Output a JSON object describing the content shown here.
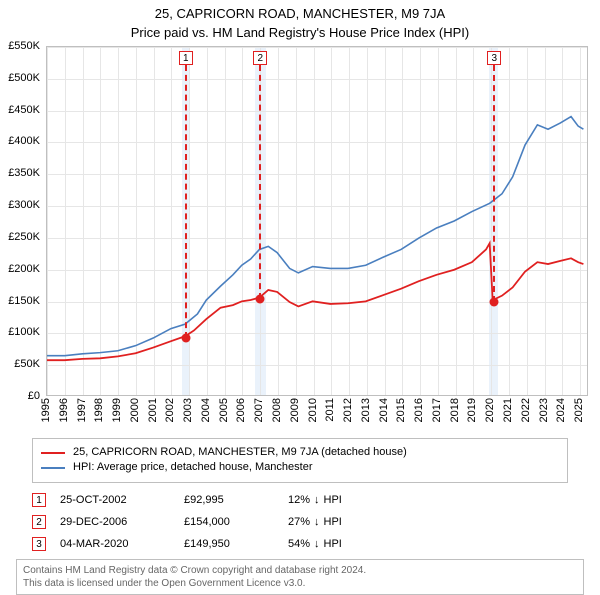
{
  "title": "25, CAPRICORN ROAD, MANCHESTER, M9 7JA",
  "subtitle": "Price paid vs. HM Land Registry's House Price Index (HPI)",
  "chart": {
    "type": "line",
    "background_color": "#ffffff",
    "grid_color": "#e6e6e6",
    "border_color": "#bfbfbf",
    "shade_color": "#eaf2fb",
    "title_fontsize": 13,
    "label_fontsize": 11,
    "x": {
      "min": 1995,
      "max": 2025.5,
      "ticks": [
        1995,
        1996,
        1997,
        1998,
        1999,
        2000,
        2001,
        2002,
        2003,
        2004,
        2005,
        2006,
        2007,
        2008,
        2009,
        2010,
        2011,
        2012,
        2013,
        2014,
        2015,
        2016,
        2017,
        2018,
        2019,
        2020,
        2021,
        2022,
        2023,
        2024,
        2025
      ]
    },
    "y": {
      "min": 0,
      "max": 550000,
      "ticks": [
        0,
        50000,
        100000,
        150000,
        200000,
        250000,
        300000,
        350000,
        400000,
        450000,
        500000,
        550000
      ],
      "labels": [
        "£0",
        "£50K",
        "£100K",
        "£150K",
        "£200K",
        "£250K",
        "£300K",
        "£350K",
        "£400K",
        "£450K",
        "£500K",
        "£550K"
      ]
    },
    "shaded_ranges": [
      [
        2002.6,
        2003.0
      ],
      [
        2006.7,
        2007.3
      ],
      [
        2019.9,
        2020.4
      ]
    ],
    "series": [
      {
        "name": "hpi",
        "label": "HPI: Average price, detached house, Manchester",
        "color": "#4a7fbf",
        "width": 1.6,
        "points": [
          [
            1995,
            62000
          ],
          [
            1996,
            62000
          ],
          [
            1997,
            65000
          ],
          [
            1998,
            67000
          ],
          [
            1999,
            70000
          ],
          [
            2000,
            78000
          ],
          [
            2001,
            90000
          ],
          [
            2002,
            105000
          ],
          [
            2002.8,
            112000
          ],
          [
            2003.5,
            128000
          ],
          [
            2004,
            150000
          ],
          [
            2004.8,
            172000
          ],
          [
            2005.5,
            190000
          ],
          [
            2006,
            205000
          ],
          [
            2006.5,
            215000
          ],
          [
            2007,
            230000
          ],
          [
            2007.5,
            235000
          ],
          [
            2008,
            225000
          ],
          [
            2008.7,
            200000
          ],
          [
            2009.2,
            193000
          ],
          [
            2010,
            203000
          ],
          [
            2011,
            200000
          ],
          [
            2012,
            200000
          ],
          [
            2013,
            205000
          ],
          [
            2014,
            218000
          ],
          [
            2015,
            230000
          ],
          [
            2016,
            248000
          ],
          [
            2017,
            264000
          ],
          [
            2018,
            275000
          ],
          [
            2019,
            290000
          ],
          [
            2020,
            303000
          ],
          [
            2020.7,
            318000
          ],
          [
            2021.3,
            345000
          ],
          [
            2022,
            395000
          ],
          [
            2022.7,
            427000
          ],
          [
            2023.3,
            420000
          ],
          [
            2024,
            430000
          ],
          [
            2024.6,
            440000
          ],
          [
            2025,
            425000
          ],
          [
            2025.3,
            420000
          ]
        ]
      },
      {
        "name": "price_paid",
        "label": "25, CAPRICORN ROAD, MANCHESTER, M9 7JA (detached house)",
        "color": "#e02020",
        "width": 1.8,
        "points": [
          [
            1995,
            55000
          ],
          [
            1996,
            55000
          ],
          [
            1997,
            57000
          ],
          [
            1998,
            58000
          ],
          [
            1999,
            61000
          ],
          [
            2000,
            66000
          ],
          [
            2001,
            75000
          ],
          [
            2002,
            85000
          ],
          [
            2002.81,
            92995
          ],
          [
            2003.3,
            102000
          ],
          [
            2004,
            120000
          ],
          [
            2004.8,
            138000
          ],
          [
            2005.5,
            142000
          ],
          [
            2006,
            148000
          ],
          [
            2006.5,
            150000
          ],
          [
            2007,
            154000
          ],
          [
            2007.5,
            166000
          ],
          [
            2008,
            163000
          ],
          [
            2008.7,
            147000
          ],
          [
            2009.2,
            140000
          ],
          [
            2010,
            148000
          ],
          [
            2011,
            144000
          ],
          [
            2012,
            145000
          ],
          [
            2013,
            148000
          ],
          [
            2014,
            158000
          ],
          [
            2015,
            168000
          ],
          [
            2016,
            180000
          ],
          [
            2017,
            190000
          ],
          [
            2018,
            198000
          ],
          [
            2019,
            210000
          ],
          [
            2019.8,
            230000
          ],
          [
            2020.0,
            240000
          ],
          [
            2020.17,
            149950
          ],
          [
            2020.7,
            157000
          ],
          [
            2021.3,
            170000
          ],
          [
            2022,
            195000
          ],
          [
            2022.7,
            210000
          ],
          [
            2023.3,
            207000
          ],
          [
            2024,
            212000
          ],
          [
            2024.6,
            216000
          ],
          [
            2025,
            210000
          ],
          [
            2025.3,
            207000
          ]
        ]
      }
    ],
    "markers": [
      {
        "id": "1",
        "x": 2002.81,
        "y": 92995
      },
      {
        "id": "2",
        "x": 2007.0,
        "y": 154000
      },
      {
        "id": "3",
        "x": 2020.17,
        "y": 149950
      }
    ],
    "marker_box_color": "#e02020",
    "marker_dot_color": "#e02020"
  },
  "legend": {
    "items": [
      {
        "color": "#e02020",
        "label": "25, CAPRICORN ROAD, MANCHESTER, M9 7JA (detached house)"
      },
      {
        "color": "#4a7fbf",
        "label": "HPI: Average price, detached house, Manchester"
      }
    ]
  },
  "transactions": [
    {
      "id": "1",
      "date": "25-OCT-2002",
      "price": "£92,995",
      "delta": "12%",
      "dir": "down",
      "vs": "HPI"
    },
    {
      "id": "2",
      "date": "29-DEC-2006",
      "price": "£154,000",
      "delta": "27%",
      "dir": "down",
      "vs": "HPI"
    },
    {
      "id": "3",
      "date": "04-MAR-2020",
      "price": "£149,950",
      "delta": "54%",
      "dir": "down",
      "vs": "HPI"
    }
  ],
  "footer": {
    "line1": "Contains HM Land Registry data © Crown copyright and database right 2024.",
    "line2": "This data is licensed under the Open Government Licence v3.0."
  },
  "arrow_down": "↓"
}
